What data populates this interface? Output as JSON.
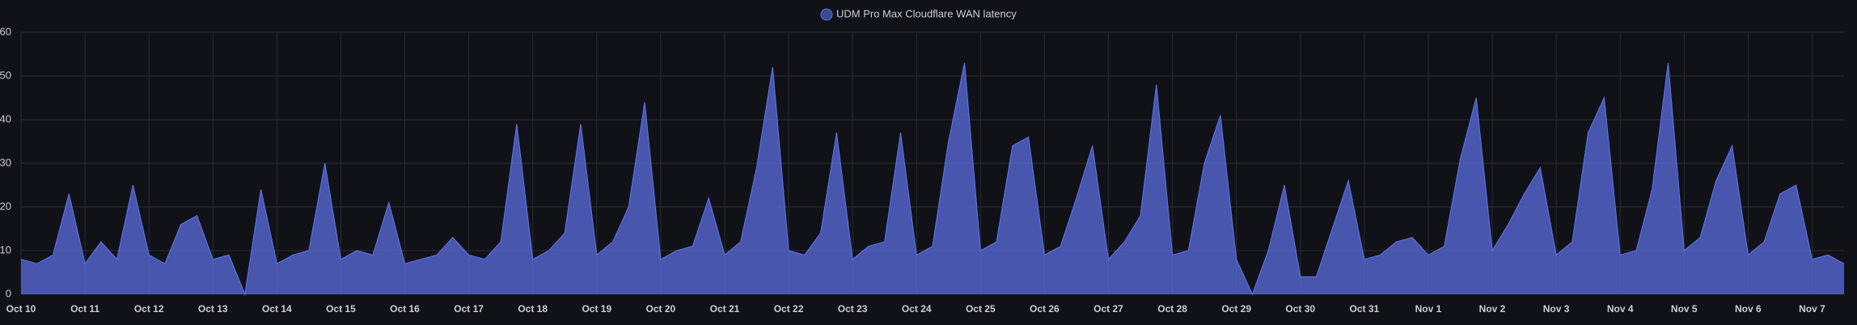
{
  "chart_data": {
    "type": "area",
    "series": [
      {
        "name": "UDM Pro Max Cloudflare WAN latency",
        "color": "#5b6ee0",
        "values": [
          8,
          7,
          9,
          23,
          7,
          12,
          8,
          25,
          9,
          7,
          16,
          18,
          8,
          9,
          0,
          24,
          7,
          9,
          10,
          30,
          8,
          10,
          9,
          21,
          7,
          8,
          9,
          13,
          9,
          8,
          12,
          39,
          8,
          10,
          14,
          39,
          9,
          12,
          20,
          44,
          8,
          10,
          11,
          22,
          9,
          12,
          29,
          52,
          10,
          9,
          14,
          37,
          8,
          11,
          12,
          37,
          9,
          11,
          35,
          53,
          10,
          12,
          34,
          36,
          9,
          11,
          22,
          34,
          8,
          12,
          18,
          48,
          9,
          10,
          30,
          41,
          8,
          0,
          10,
          25,
          4,
          4,
          15,
          26,
          8,
          9,
          12,
          13,
          9,
          11,
          31,
          45,
          10,
          16,
          23,
          29,
          9,
          12,
          37,
          45,
          9,
          10,
          24,
          53,
          10,
          13,
          26,
          34,
          9,
          12,
          23,
          25,
          8,
          9,
          7
        ]
      }
    ],
    "categories": [
      "Oct 10",
      null,
      null,
      null,
      "Oct 11",
      null,
      null,
      null,
      "Oct 12",
      null,
      null,
      null,
      "Oct 13",
      null,
      null,
      null,
      "Oct 14",
      null,
      null,
      null,
      "Oct 15",
      null,
      null,
      null,
      "Oct 16",
      null,
      null,
      null,
      "Oct 17",
      null,
      null,
      null,
      "Oct 18",
      null,
      null,
      null,
      "Oct 19",
      null,
      null,
      null,
      "Oct 20",
      null,
      null,
      null,
      "Oct 21",
      null,
      null,
      null,
      "Oct 22",
      null,
      null,
      null,
      "Oct 23",
      null,
      null,
      null,
      "Oct 24",
      null,
      null,
      null,
      "Oct 25",
      null,
      null,
      null,
      "Oct 26",
      null,
      null,
      null,
      "Oct 27",
      null,
      null,
      null,
      "Oct 28",
      null,
      null,
      null,
      "Oct 29",
      null,
      null,
      null,
      "Oct 30",
      null,
      null,
      null,
      "Oct 31",
      null,
      null,
      null,
      "Nov 1",
      null,
      null,
      null,
      "Nov 2",
      null,
      null,
      null,
      "Nov 3",
      null,
      null,
      null,
      "Nov 4",
      null,
      null,
      null,
      "Nov 5",
      null,
      null,
      null,
      "Nov 6",
      null,
      null,
      null,
      "Nov 7",
      null,
      null
    ],
    "ylim": [
      0,
      60
    ],
    "yticks": [
      0,
      10,
      20,
      30,
      40,
      50,
      60
    ],
    "grid": true,
    "legend": "top"
  }
}
